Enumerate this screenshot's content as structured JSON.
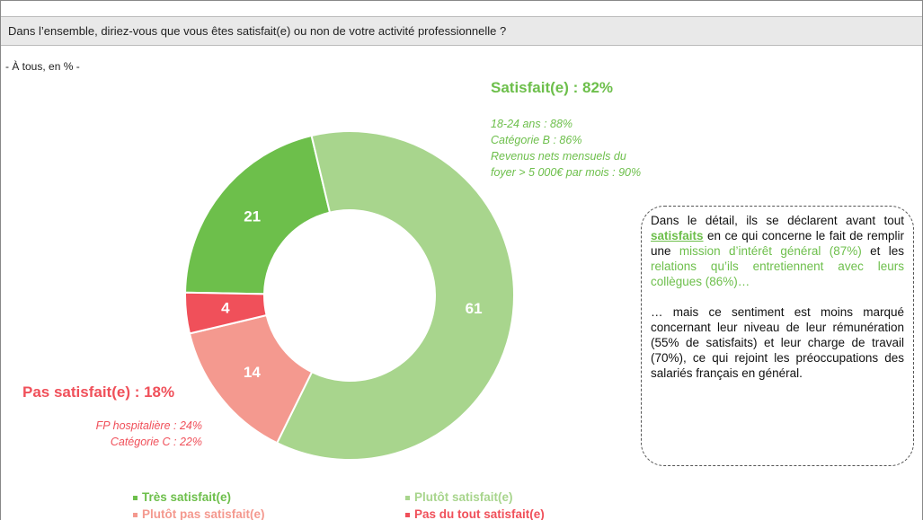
{
  "chart_data": {
    "type": "donut",
    "title": "Dans l’ensemble, diriez-vous que vous êtes satisfait(e) ou non de votre activité professionnelle ?",
    "subtitle": "- À tous, en % -",
    "categories": [
      "Très satisfait(e)",
      "Plutôt satisfait(e)",
      "Plutôt pas satisfait(e)",
      "Pas du tout satisfait(e)"
    ],
    "values": [
      21,
      61,
      14,
      4
    ],
    "colors": [
      "#6dbf4b",
      "#a8d58d",
      "#f4998f",
      "#f0505a"
    ],
    "legend": "bottom",
    "annotations": [
      {
        "heading": "Satisfait(e) : 82%",
        "color": "#6dbf4b",
        "lines": [
          "18-24 ans : 88%",
          "Catégorie B : 86%",
          "Revenus nets mensuels du",
          "foyer > 5 000€ par mois : 90%"
        ]
      },
      {
        "heading": "Pas satisfait(e) : 18%",
        "color": "#f0505a",
        "lines": [
          "FP hospitalière : 24%",
          "Catégorie C : 22%"
        ]
      }
    ],
    "note": {
      "paragraphs": [
        [
          {
            "text": "Dans le détail, ils se déclarent avant tout "
          },
          {
            "text": "satisfaits",
            "style": "highlight"
          },
          {
            "text": " en ce qui concerne le fait de remplir une "
          },
          {
            "text": "mission d’intérêt général (87%)",
            "style": "green"
          },
          {
            "text": " et les "
          },
          {
            "text": "relations qu’ils entretiennent avec leurs collègues (86%)…",
            "style": "green"
          }
        ],
        [
          {
            "text": "… mais ce sentiment est moins marqué concernant leur niveau de leur rémunération (55% de satisfaits) et leur charge de travail (70%), ce qui rejoint les préoccupations des salariés français en général."
          }
        ]
      ]
    }
  }
}
